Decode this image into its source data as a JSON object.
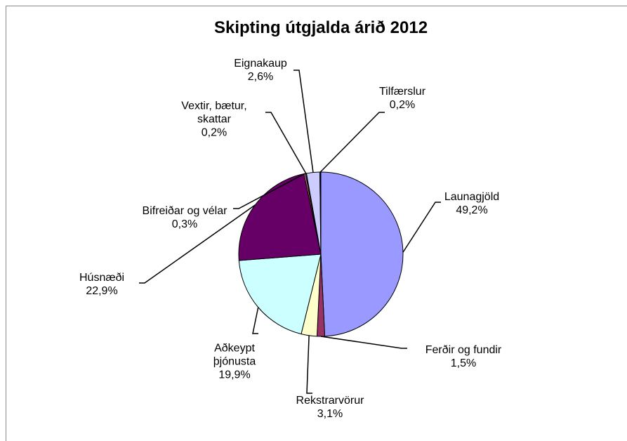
{
  "chart_data": {
    "type": "pie",
    "title": "Skipting útgjalda árið 2012",
    "categories": [
      "Launagjöld",
      "Ferðir og fundir",
      "Rekstrarvörur",
      "Aðkeypt þjónusta",
      "Húsnæði",
      "Bifreiðar og vélar",
      "Vextir, bætur, skattar",
      "Eignakaup",
      "Tilfærslur"
    ],
    "values": [
      49.2,
      1.5,
      3.1,
      19.9,
      22.9,
      0.3,
      0.2,
      2.6,
      0.2
    ],
    "value_labels": [
      "49,2%",
      "1,5%",
      "3,1%",
      "19,9%",
      "22,9%",
      "0,3%",
      "0,2%",
      "2,6%",
      "0,2%"
    ],
    "colors": [
      "#9999ff",
      "#993366",
      "#ffffcc",
      "#ccffff",
      "#660066",
      "#ff8080",
      "#0066cc",
      "#ccccff",
      "#000080"
    ]
  }
}
